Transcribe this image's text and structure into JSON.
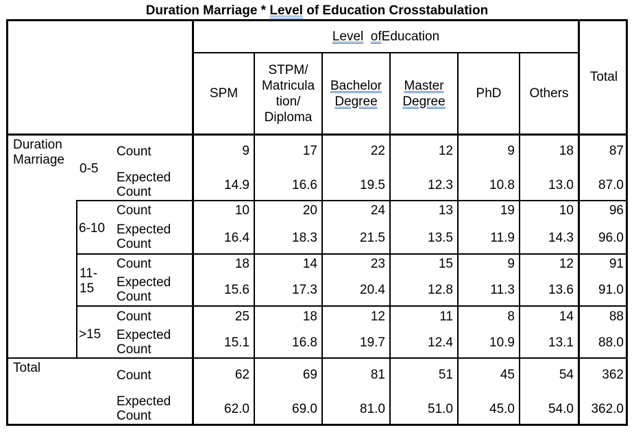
{
  "title": {
    "prefix": "Duration Marriage * ",
    "level": "Level",
    "of": "of",
    "suffix": " Education Crosstabulation"
  },
  "header": {
    "group": {
      "level": "Level",
      "of": "of",
      "education": " Education"
    },
    "columns": [
      {
        "label": "SPM"
      },
      {
        "label": "STPM/ Matricula tion/ Diploma"
      },
      {
        "label": "Bachelor Degree"
      },
      {
        "label": "Master Degree"
      },
      {
        "label": "PhD"
      },
      {
        "label": "Others"
      }
    ],
    "total": "Total"
  },
  "row_variable": "Duration Marriage",
  "groups": [
    {
      "label": "0-5",
      "count_label": "Count",
      "expected_label": "Expected Count",
      "count": [
        "9",
        "17",
        "22",
        "12",
        "9",
        "18",
        "87"
      ],
      "expected": [
        "14.9",
        "16.6",
        "19.5",
        "12.3",
        "10.8",
        "13.0",
        "87.0"
      ]
    },
    {
      "label": "6-10",
      "count_label": "Count",
      "expected_label": "Expected Count",
      "count": [
        "10",
        "20",
        "24",
        "13",
        "19",
        "10",
        "96"
      ],
      "expected": [
        "16.4",
        "18.3",
        "21.5",
        "13.5",
        "11.9",
        "14.3",
        "96.0"
      ]
    },
    {
      "label": "11-15",
      "count_label": "Count",
      "expected_label": "Expected Count",
      "count": [
        "18",
        "14",
        "23",
        "15",
        "9",
        "12",
        "91"
      ],
      "expected": [
        "15.6",
        "17.3",
        "20.4",
        "12.8",
        "11.3",
        "13.6",
        "91.0"
      ]
    },
    {
      "label": ">15",
      "count_label": "Count",
      "expected_label": "Expected Count",
      "count": [
        "25",
        "18",
        "12",
        "11",
        "8",
        "14",
        "88"
      ],
      "expected": [
        "15.1",
        "16.8",
        "19.7",
        "12.4",
        "10.9",
        "13.1",
        "88.0"
      ]
    }
  ],
  "total_row": {
    "label": "Total",
    "count_label": "Count",
    "expected_label": "Expected Count",
    "count": [
      "62",
      "69",
      "81",
      "51",
      "45",
      "54",
      "362"
    ],
    "expected": [
      "62.0",
      "69.0",
      "81.0",
      "51.0",
      "45.0",
      "54.0",
      "362.0"
    ]
  }
}
